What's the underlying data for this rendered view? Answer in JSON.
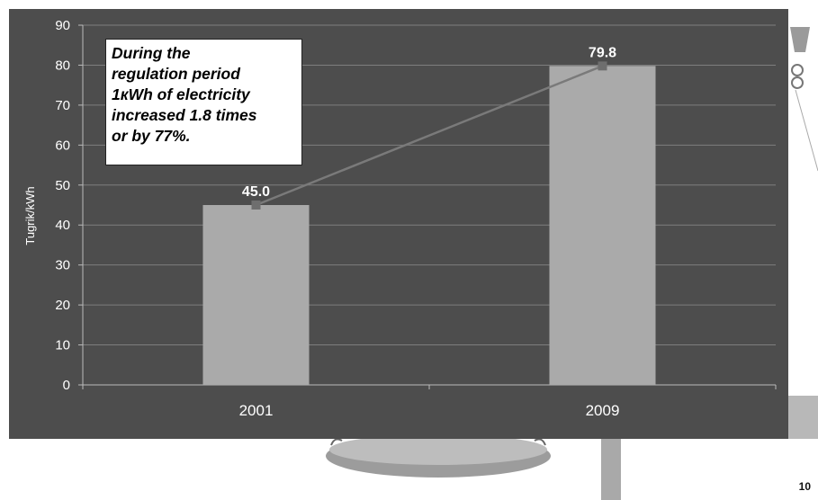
{
  "chart_data": {
    "type": "bar",
    "categories": [
      "2001",
      "2009"
    ],
    "values": [
      45.0,
      79.8
    ],
    "value_labels": [
      "45.0",
      "79.8"
    ],
    "line_overlay": true,
    "ylabel": "Tugrik/kWh",
    "xlabel": "",
    "ylim": [
      0,
      90
    ],
    "yticks": [
      0,
      10,
      20,
      30,
      40,
      50,
      60,
      70,
      80,
      90
    ],
    "grid": true,
    "colors": {
      "plot_background": "#4d4d4d",
      "bar": "#aaaaaa",
      "line": "#7a7a7a",
      "marker": "#6e6e6e",
      "grid": "#7e7e7e",
      "text": "#ffffff"
    }
  },
  "annotation": {
    "lines": [
      "During the",
      "regulation period",
      "1кWh of  electricity",
      "increased 1.8 times",
      "or by 77%."
    ]
  },
  "page_number": "10"
}
